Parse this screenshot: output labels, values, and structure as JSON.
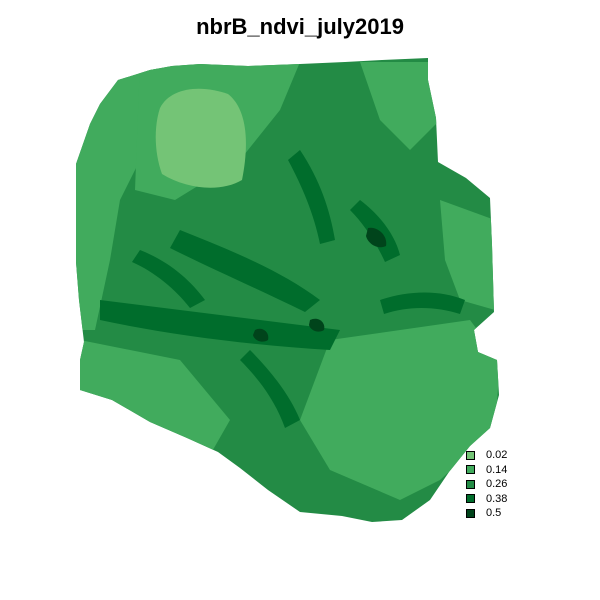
{
  "map": {
    "title": "nbrB_ndvi_july2019",
    "legend": [
      {
        "label": "0.02",
        "color": "#74c476"
      },
      {
        "label": "0.14",
        "color": "#41ab5d"
      },
      {
        "label": "0.26",
        "color": "#238b45"
      },
      {
        "label": "0.38",
        "color": "#006d2c"
      },
      {
        "label": "0.5",
        "color": "#00441b"
      }
    ]
  }
}
